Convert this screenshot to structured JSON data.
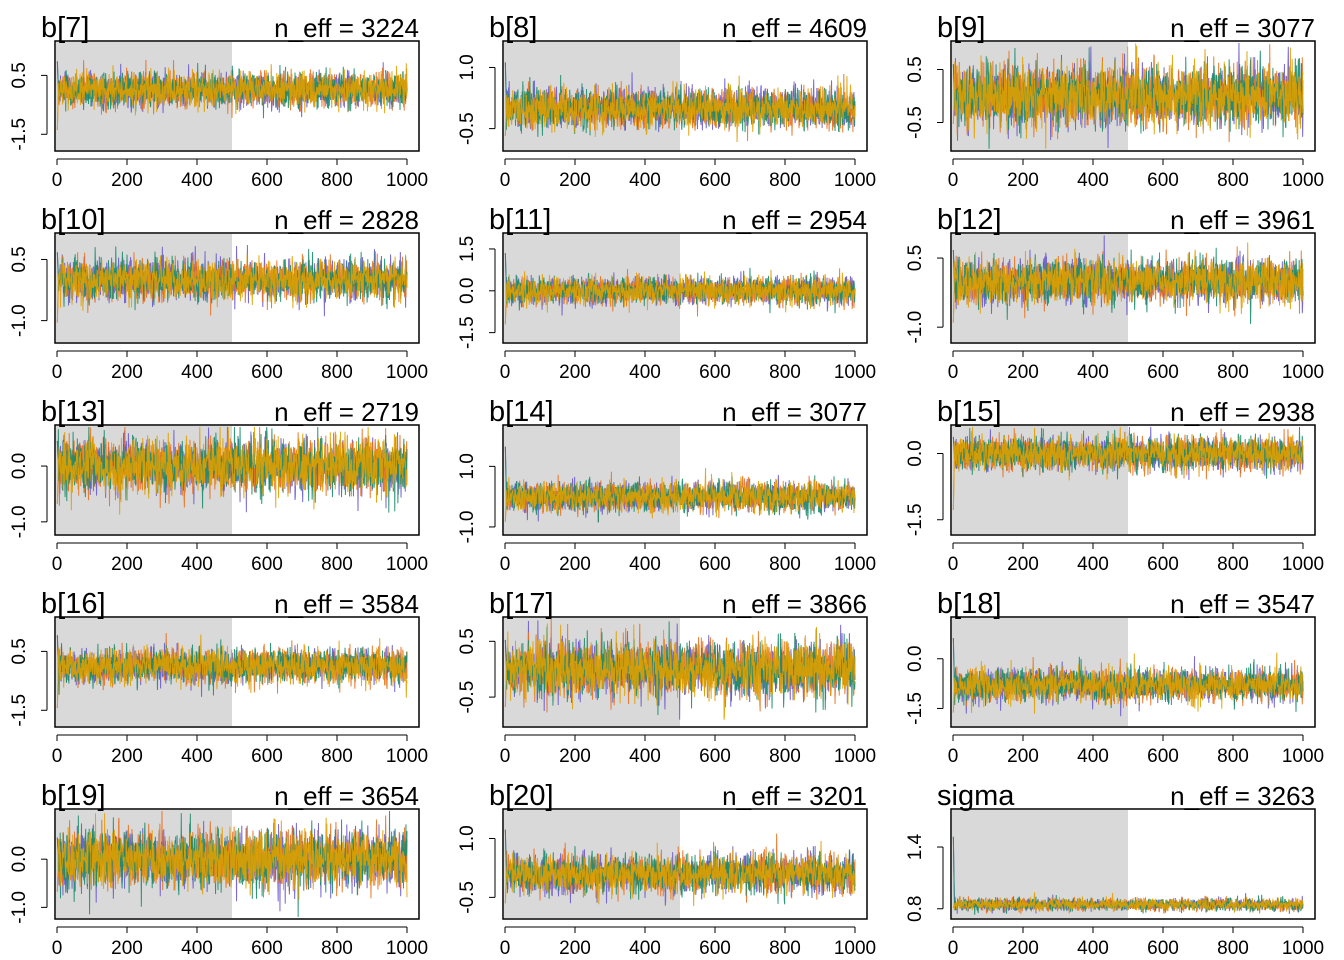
{
  "figure": {
    "warmup_shade": "#d9d9d9",
    "chain_colors": [
      "#6a5acd",
      "#e8711f",
      "#1b8c6b",
      "#e0a000"
    ]
  },
  "chart_data": [
    {
      "type": "line",
      "title": "b[7]",
      "n_eff_label": "n_eff = 3224",
      "n_eff": 3224,
      "xlim": [
        0,
        1000
      ],
      "warmup": 500,
      "ylim": [
        -2.0,
        1.6
      ],
      "yticks": [
        -1.5,
        0.5
      ],
      "ytick_labels": [
        "-1.5",
        "0.5"
      ],
      "xticks": [
        0,
        200,
        400,
        600,
        800,
        1000
      ],
      "xtick_labels": [
        "0",
        "200",
        "400",
        "600",
        "800",
        "1000"
      ],
      "center": 0.0,
      "spread": 0.3,
      "init": [
        1.3,
        -1.8
      ]
    },
    {
      "type": "line",
      "title": "b[8]",
      "n_eff_label": "n_eff = 4609",
      "n_eff": 4609,
      "xlim": [
        0,
        1000
      ],
      "warmup": 500,
      "ylim": [
        -1.0,
        1.6
      ],
      "yticks": [
        -0.5,
        1.0
      ],
      "ytick_labels": [
        "-0.5",
        "1.0"
      ],
      "xticks": [
        0,
        200,
        400,
        600,
        800,
        1000
      ],
      "xtick_labels": [
        "0",
        "200",
        "400",
        "600",
        "800",
        "1000"
      ],
      "center": 0.0,
      "spread": 0.25,
      "init": [
        1.5,
        -0.9
      ]
    },
    {
      "type": "line",
      "title": "b[9]",
      "n_eff_label": "n_eff = 3077",
      "n_eff": 3077,
      "xlim": [
        0,
        1000
      ],
      "warmup": 500,
      "ylim": [
        -1.0,
        1.0
      ],
      "yticks": [
        -0.5,
        0.5
      ],
      "ytick_labels": [
        "-0.5",
        "0.5"
      ],
      "xticks": [
        0,
        200,
        400,
        600,
        800,
        1000
      ],
      "xtick_labels": [
        "0",
        "200",
        "400",
        "600",
        "800",
        "1000"
      ],
      "center": 0.0,
      "spread": 0.3,
      "init": [
        0.8,
        -0.7
      ]
    },
    {
      "type": "line",
      "title": "b[10]",
      "n_eff_label": "n_eff = 2828",
      "n_eff": 2828,
      "xlim": [
        0,
        1000
      ],
      "warmup": 500,
      "ylim": [
        -1.5,
        1.1
      ],
      "yticks": [
        -1.0,
        0.5
      ],
      "ytick_labels": [
        "-1.0",
        "0.5"
      ],
      "xticks": [
        0,
        200,
        400,
        600,
        800,
        1000
      ],
      "xtick_labels": [
        "0",
        "200",
        "400",
        "600",
        "800",
        "1000"
      ],
      "center": 0.0,
      "spread": 0.25,
      "init": [
        0.9,
        -1.4
      ]
    },
    {
      "type": "line",
      "title": "b[11]",
      "n_eff_label": "n_eff = 2954",
      "n_eff": 2954,
      "xlim": [
        0,
        1000
      ],
      "warmup": 500,
      "ylim": [
        -1.8,
        2.0
      ],
      "yticks": [
        -1.5,
        0.0,
        1.5
      ],
      "ytick_labels": [
        "-1.5",
        "0.0",
        "1.5"
      ],
      "xticks": [
        0,
        200,
        400,
        600,
        800,
        1000
      ],
      "xtick_labels": [
        "0",
        "200",
        "400",
        "600",
        "800",
        "1000"
      ],
      "center": 0.0,
      "spread": 0.25,
      "init": [
        1.8,
        -1.6
      ]
    },
    {
      "type": "line",
      "title": "b[12]",
      "n_eff_label": "n_eff = 3961",
      "n_eff": 3961,
      "xlim": [
        0,
        1000
      ],
      "warmup": 500,
      "ylim": [
        -1.3,
        1.0
      ],
      "yticks": [
        -1.0,
        0.5
      ],
      "ytick_labels": [
        "-1.0",
        "0.5"
      ],
      "xticks": [
        0,
        200,
        400,
        600,
        800,
        1000
      ],
      "xtick_labels": [
        "0",
        "200",
        "400",
        "600",
        "800",
        "1000"
      ],
      "center": 0.0,
      "spread": 0.25,
      "init": [
        0.9,
        -1.2
      ]
    },
    {
      "type": "line",
      "title": "b[13]",
      "n_eff_label": "n_eff = 2719",
      "n_eff": 2719,
      "xlim": [
        0,
        1000
      ],
      "warmup": 500,
      "ylim": [
        -1.2,
        0.7
      ],
      "yticks": [
        -1.0,
        0.0
      ],
      "ytick_labels": [
        "-1.0",
        "0.0"
      ],
      "xticks": [
        0,
        200,
        400,
        600,
        800,
        1000
      ],
      "xtick_labels": [
        "0",
        "200",
        "400",
        "600",
        "800",
        "1000"
      ],
      "center": 0.0,
      "spread": 0.25,
      "init": [
        0.6,
        -0.9
      ]
    },
    {
      "type": "line",
      "title": "b[14]",
      "n_eff_label": "n_eff = 3077",
      "n_eff": 3077,
      "xlim": [
        0,
        1000
      ],
      "warmup": 500,
      "ylim": [
        -1.2,
        2.3
      ],
      "yticks": [
        -1.0,
        1.0
      ],
      "ytick_labels": [
        "-1.0",
        "1.0"
      ],
      "xticks": [
        0,
        200,
        400,
        600,
        800,
        1000
      ],
      "xtick_labels": [
        "0",
        "200",
        "400",
        "600",
        "800",
        "1000"
      ],
      "center": 0.0,
      "spread": 0.25,
      "init": [
        2.2,
        -1.1
      ]
    },
    {
      "type": "line",
      "title": "b[15]",
      "n_eff_label": "n_eff = 2938",
      "n_eff": 2938,
      "xlim": [
        0,
        1000
      ],
      "warmup": 500,
      "ylim": [
        -1.8,
        0.6
      ],
      "yticks": [
        -1.5,
        0.0
      ],
      "ytick_labels": [
        "-1.5",
        "0.0"
      ],
      "xticks": [
        0,
        200,
        400,
        600,
        800,
        1000
      ],
      "xtick_labels": [
        "0",
        "200",
        "400",
        "600",
        "800",
        "1000"
      ],
      "center": 0.0,
      "spread": 0.2,
      "init": [
        0.5,
        -1.7
      ]
    },
    {
      "type": "line",
      "title": "b[16]",
      "n_eff_label": "n_eff = 3584",
      "n_eff": 3584,
      "xlim": [
        0,
        1000
      ],
      "warmup": 500,
      "ylim": [
        -2.0,
        1.6
      ],
      "yticks": [
        -1.5,
        0.5
      ],
      "ytick_labels": [
        "-1.5",
        "0.5"
      ],
      "xticks": [
        0,
        200,
        400,
        600,
        800,
        1000
      ],
      "xtick_labels": [
        "0",
        "200",
        "400",
        "600",
        "800",
        "1000"
      ],
      "center": 0.0,
      "spread": 0.3,
      "init": [
        1.4,
        -1.9
      ]
    },
    {
      "type": "line",
      "title": "b[17]",
      "n_eff_label": "n_eff = 3866",
      "n_eff": 3866,
      "xlim": [
        0,
        1000
      ],
      "warmup": 500,
      "ylim": [
        -1.0,
        0.9
      ],
      "yticks": [
        -0.5,
        0.5
      ],
      "ytick_labels": [
        "-0.5",
        "0.5"
      ],
      "xticks": [
        0,
        200,
        400,
        600,
        800,
        1000
      ],
      "xtick_labels": [
        "0",
        "200",
        "400",
        "600",
        "800",
        "1000"
      ],
      "center": 0.0,
      "spread": 0.25,
      "init": [
        0.7,
        -0.9
      ]
    },
    {
      "type": "line",
      "title": "b[18]",
      "n_eff_label": "n_eff = 3547",
      "n_eff": 3547,
      "xlim": [
        0,
        1000
      ],
      "warmup": 500,
      "ylim": [
        -2.0,
        1.2
      ],
      "yticks": [
        -1.5,
        0.0
      ],
      "ytick_labels": [
        "-1.5",
        "0.0"
      ],
      "xticks": [
        0,
        200,
        400,
        600,
        800,
        1000
      ],
      "xtick_labels": [
        "0",
        "200",
        "400",
        "600",
        "800",
        "1000"
      ],
      "center": -0.8,
      "spread": 0.25,
      "init": [
        1.1,
        -1.9
      ]
    },
    {
      "type": "line",
      "title": "b[19]",
      "n_eff_label": "n_eff = 3654",
      "n_eff": 3654,
      "xlim": [
        0,
        1000
      ],
      "warmup": 500,
      "ylim": [
        -1.2,
        1.0
      ],
      "yticks": [
        -1.0,
        0.0
      ],
      "ytick_labels": [
        "-1.0",
        "0.0"
      ],
      "xticks": [
        0,
        200,
        400,
        600,
        800,
        1000
      ],
      "xtick_labels": [
        "0",
        "200",
        "400",
        "600",
        "800",
        "1000"
      ],
      "center": 0.0,
      "spread": 0.3,
      "init": [
        0.6,
        -0.9
      ]
    },
    {
      "type": "line",
      "title": "b[20]",
      "n_eff_label": "n_eff = 3201",
      "n_eff": 3201,
      "xlim": [
        0,
        1000
      ],
      "warmup": 500,
      "ylim": [
        -1.0,
        1.7
      ],
      "yticks": [
        -0.5,
        1.0
      ],
      "ytick_labels": [
        "-0.5",
        "1.0"
      ],
      "xticks": [
        0,
        200,
        400,
        600,
        800,
        1000
      ],
      "xtick_labels": [
        "0",
        "200",
        "400",
        "600",
        "800",
        "1000"
      ],
      "center": 0.1,
      "spread": 0.25,
      "init": [
        1.6,
        -0.9
      ]
    },
    {
      "type": "line",
      "title": "sigma",
      "n_eff_label": "n_eff = 3263",
      "n_eff": 3263,
      "xlim": [
        0,
        1000
      ],
      "warmup": 500,
      "ylim": [
        0.72,
        1.75
      ],
      "yticks": [
        0.8,
        1.4
      ],
      "ytick_labels": [
        "0.8",
        "1.4"
      ],
      "xticks": [
        0,
        200,
        400,
        600,
        800,
        1000
      ],
      "xtick_labels": [
        "0",
        "200",
        "400",
        "600",
        "800",
        "1000"
      ],
      "center": 0.84,
      "spread": 0.03,
      "init": [
        1.72,
        0.8
      ]
    }
  ]
}
